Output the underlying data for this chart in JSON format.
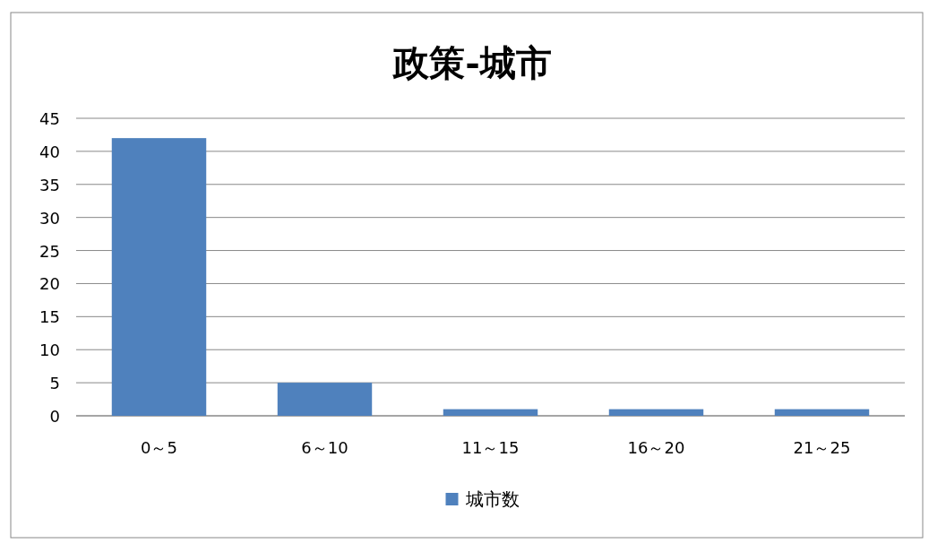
{
  "chart_data": {
    "type": "bar",
    "title": "政策-城市",
    "categories": [
      "0～5",
      "6～10",
      "11～15",
      "16～20",
      "21～25"
    ],
    "series": [
      {
        "name": "城市数",
        "color": "#4f81bd",
        "values": [
          42,
          5,
          1,
          1,
          1
        ]
      }
    ],
    "ylim": [
      0,
      45
    ],
    "yticks": [
      0,
      5,
      10,
      15,
      20,
      25,
      30,
      35,
      40,
      45
    ],
    "grid": "y",
    "legend": "bottom"
  }
}
